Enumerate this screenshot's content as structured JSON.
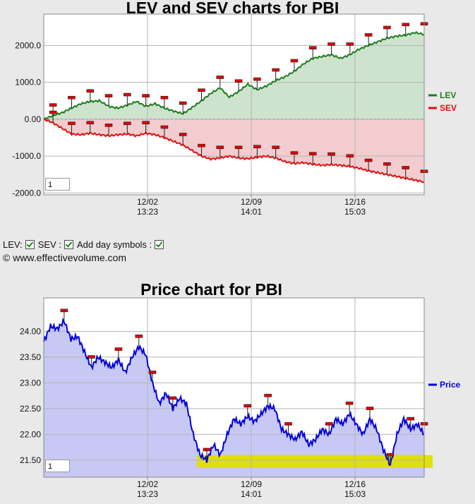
{
  "page": {
    "lev_sev_title": "LEV and SEV charts for PBI",
    "price_title": "Price chart for PBI",
    "copyright": "© www.effectivevolume.com",
    "controls": {
      "lev_label": "LEV:",
      "sev_label": "SEV :",
      "day_symbols_label": "Add day symbols :"
    },
    "zoom_value_top": "1",
    "zoom_value_bottom": "1"
  },
  "chart_data": [
    {
      "type": "area",
      "title": "LEV and SEV charts for PBI",
      "x_tick_labels": [
        {
          "date": "12/02",
          "time": "13:23"
        },
        {
          "date": "12/09",
          "time": "14:01"
        },
        {
          "date": "12/16",
          "time": "15:03"
        }
      ],
      "y_tick_labels": [
        "2000.0",
        "1000.0",
        "0.00",
        "-1000.0",
        "-2000.0"
      ],
      "ylim": [
        -2050,
        2850
      ],
      "legend_position": "right",
      "series": [
        {
          "name": "LEV",
          "color": "#1e7d1e",
          "fill": "#cde3cd",
          "values": [
            0,
            100,
            180,
            300,
            420,
            480,
            500,
            350,
            300,
            380,
            480,
            350,
            420,
            300,
            220,
            150,
            320,
            500,
            700,
            850,
            600,
            750,
            950,
            800,
            900,
            1050,
            1150,
            1300,
            1500,
            1650,
            1700,
            1750,
            1650,
            1750,
            1900,
            2000,
            2100,
            2200,
            2250,
            2280,
            2350,
            2300
          ]
        },
        {
          "name": "SEV",
          "color": "#e01010",
          "fill": "#f3cccf",
          "values": [
            0,
            -100,
            -250,
            -400,
            -420,
            -380,
            -420,
            -450,
            -420,
            -400,
            -450,
            -380,
            -420,
            -500,
            -600,
            -700,
            -850,
            -1000,
            -1080,
            -1050,
            -1000,
            -1050,
            -1070,
            -1030,
            -1000,
            -1050,
            -1150,
            -1200,
            -1180,
            -1220,
            -1250,
            -1230,
            -1250,
            -1280,
            -1330,
            -1400,
            -1450,
            -1500,
            -1550,
            -1600,
            -1650,
            -1700
          ]
        }
      ],
      "day_symbols": true
    },
    {
      "type": "area",
      "title": "Price chart for PBI",
      "x_tick_labels": [
        {
          "date": "12/02",
          "time": "13:23"
        },
        {
          "date": "12/09",
          "time": "14:01"
        },
        {
          "date": "12/16",
          "time": "15:03"
        }
      ],
      "y_tick_labels": [
        "24.00",
        "23.50",
        "23.00",
        "22.50",
        "22.00",
        "21.50"
      ],
      "ylim": [
        21.17,
        24.65
      ],
      "legend_position": "right",
      "series": [
        {
          "name": "Price",
          "color": "#0000dd",
          "fill": "#c8c8f4",
          "values": [
            23.8,
            24.1,
            24.05,
            24.2,
            23.85,
            23.9,
            23.6,
            23.3,
            23.5,
            23.4,
            23.3,
            23.45,
            23.2,
            23.5,
            23.7,
            23.55,
            23.0,
            22.6,
            22.8,
            22.5,
            22.7,
            22.6,
            22.0,
            21.6,
            21.5,
            21.8,
            21.6,
            22.0,
            22.3,
            22.2,
            22.35,
            22.25,
            22.4,
            22.55,
            22.5,
            22.1,
            22.0,
            21.9,
            22.05,
            21.8,
            21.9,
            22.1,
            22.0,
            22.3,
            22.2,
            22.4,
            22.2,
            22.0,
            22.3,
            22.1,
            21.7,
            21.4,
            22.0,
            22.3,
            22.1,
            22.2,
            22.0
          ]
        }
      ],
      "highlight_band": [
        21.35,
        21.6
      ],
      "day_symbols": true
    }
  ]
}
